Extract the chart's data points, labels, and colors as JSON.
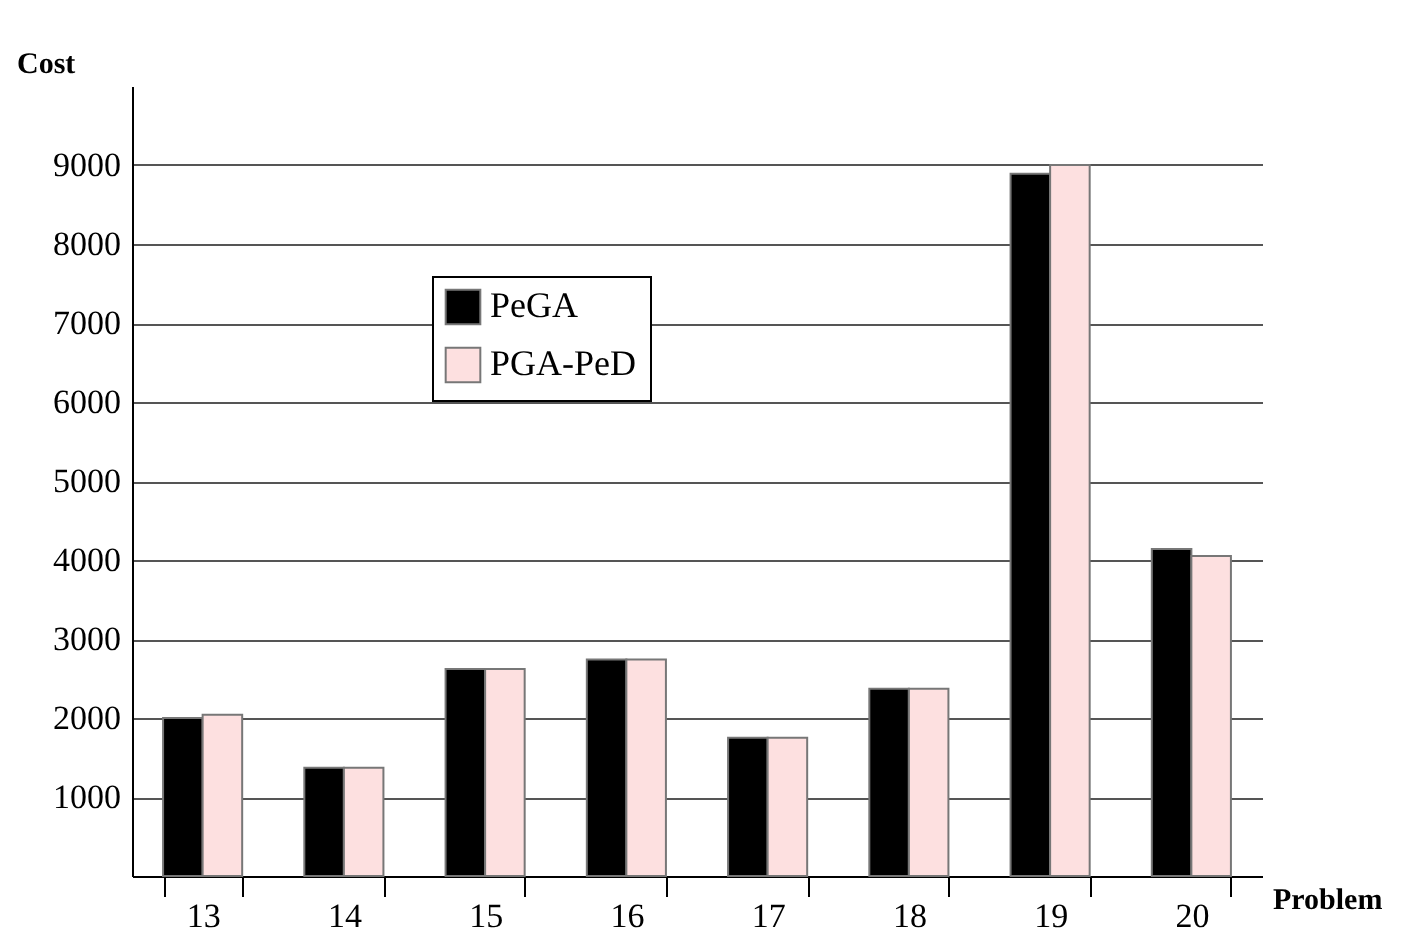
{
  "chart_data": {
    "type": "bar",
    "xlabel": "Problem",
    "ylabel": "Cost",
    "categories": [
      "13",
      "14",
      "15",
      "16",
      "17",
      "18",
      "19",
      "20"
    ],
    "series": [
      {
        "name": "PeGA",
        "color": "#000000",
        "values": [
          2000,
          1370,
          2620,
          2740,
          1750,
          2370,
          8890,
          4140
        ]
      },
      {
        "name": "PGA-PeD",
        "color": "#fde0e0",
        "values": [
          2040,
          1370,
          2620,
          2740,
          1750,
          2370,
          9000,
          4050
        ]
      }
    ],
    "ylim": [
      0,
      10000
    ],
    "yticks": [
      1000,
      2000,
      3000,
      4000,
      5000,
      6000,
      7000,
      8000,
      9000
    ],
    "grid": "y",
    "legend": "top left"
  }
}
